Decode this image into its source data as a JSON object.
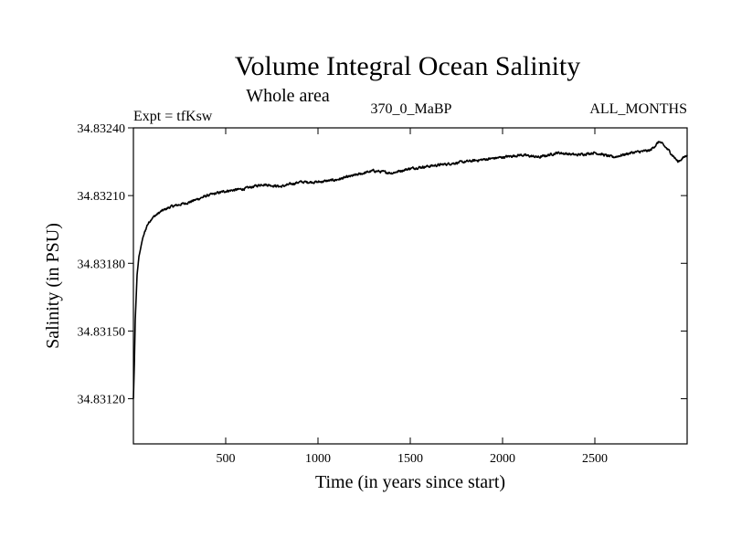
{
  "chart_data": {
    "type": "line",
    "title": "Volume Integral Ocean Salinity",
    "subtitle": "Whole area",
    "experiment": "Expt = tfKsw",
    "run_label": "370_0_MaBP",
    "period_label": "ALL_MONTHS",
    "xlabel": "Time (in years since start)",
    "ylabel": "Salinity (in PSU)",
    "xlim": [
      0,
      3000
    ],
    "ylim": [
      34.831,
      34.8324
    ],
    "xticks": [
      500,
      1000,
      1500,
      2000,
      2500
    ],
    "xtick_labels": [
      "500",
      "1000",
      "1500",
      "2000",
      "2500"
    ],
    "yticks": [
      34.8312,
      34.8315,
      34.8318,
      34.8321,
      34.8324
    ],
    "ytick_labels": [
      "34.83120",
      "34.83150",
      "34.83180",
      "34.83210",
      "34.83240"
    ],
    "grid": false,
    "series": [
      {
        "name": "salinity",
        "x": [
          0,
          5,
          10,
          20,
          30,
          50,
          75,
          100,
          150,
          200,
          300,
          400,
          500,
          600,
          700,
          800,
          900,
          1000,
          1100,
          1200,
          1300,
          1400,
          1500,
          1600,
          1700,
          1800,
          1900,
          2000,
          2100,
          2200,
          2300,
          2400,
          2500,
          2600,
          2700,
          2800,
          2850,
          2900,
          2950,
          3000
        ],
        "values": [
          34.8312,
          34.83135,
          34.83155,
          34.83175,
          34.83183,
          34.83191,
          34.83197,
          34.832,
          34.83203,
          34.83205,
          34.83207,
          34.8321,
          34.83212,
          34.83213,
          34.83215,
          34.83214,
          34.83216,
          34.83216,
          34.83217,
          34.83219,
          34.83221,
          34.8322,
          34.83222,
          34.83223,
          34.83224,
          34.83225,
          34.83226,
          34.83227,
          34.83228,
          34.83227,
          34.83229,
          34.83228,
          34.83229,
          34.83227,
          34.83229,
          34.8323,
          34.83234,
          34.8323,
          34.83225,
          34.83228
        ]
      }
    ]
  }
}
